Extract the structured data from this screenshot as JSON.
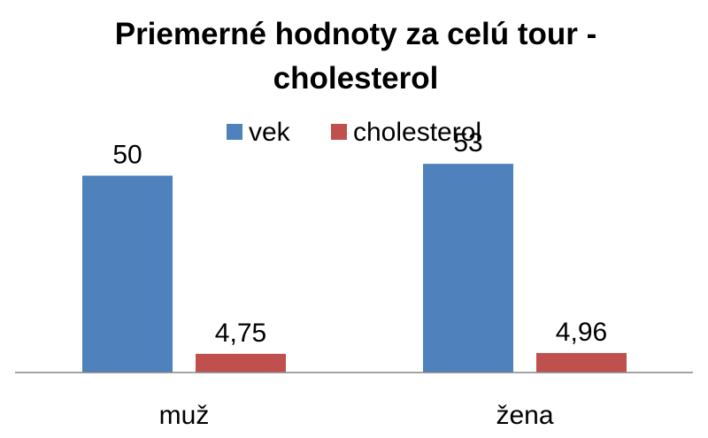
{
  "chart_data": {
    "type": "bar",
    "title": "Priemerné hodnoty za celú tour - cholesterol",
    "title_lines": [
      "Priemerné hodnoty za celú tour -",
      "cholesterol"
    ],
    "categories": [
      "muž",
      "žena"
    ],
    "series": [
      {
        "name": "vek",
        "values": [
          50,
          53
        ],
        "labels": [
          "50",
          "53"
        ],
        "color": "#4F81BD"
      },
      {
        "name": "cholesterol",
        "values": [
          4.75,
          4.96
        ],
        "labels": [
          "4,75",
          "4,96"
        ],
        "color": "#C0504D"
      }
    ],
    "ylim": [
      0,
      60
    ],
    "legend_position": "top",
    "grid": false,
    "xlabel": "",
    "ylabel": ""
  }
}
